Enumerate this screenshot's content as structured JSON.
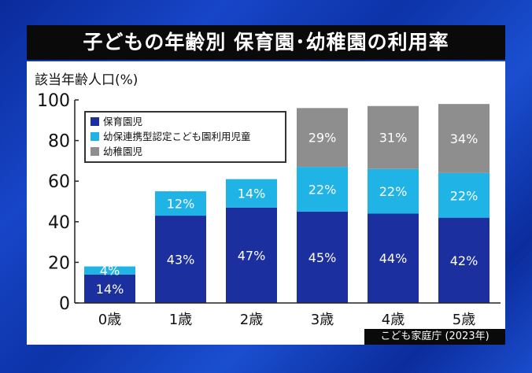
{
  "title": "子どもの年齢別 保育園･幼稚園の利用率",
  "source": "こども家庭庁 (2023年)",
  "chart_data": {
    "type": "bar",
    "stacked": true,
    "title": "子どもの年齢別 保育園･幼稚園の利用率",
    "ylabel": "該当年齢人口(%)",
    "xlabel": "",
    "ylim": [
      0,
      100
    ],
    "yticks": [
      0,
      20,
      40,
      60,
      80,
      100
    ],
    "categories": [
      "0歳",
      "1歳",
      "2歳",
      "3歳",
      "4歳",
      "5歳"
    ],
    "legend_position": "top-left",
    "series": [
      {
        "name": "保育園児",
        "color": "#1b2f9e",
        "values": [
          14,
          43,
          47,
          45,
          44,
          42
        ]
      },
      {
        "name": "幼保連携型認定こども園利用児童",
        "color": "#1fb3e6",
        "values": [
          4,
          12,
          14,
          22,
          22,
          22
        ]
      },
      {
        "name": "幼稚園児",
        "color": "#8e8e8e",
        "values": [
          null,
          null,
          null,
          29,
          31,
          34
        ]
      }
    ],
    "value_suffix": "%"
  }
}
